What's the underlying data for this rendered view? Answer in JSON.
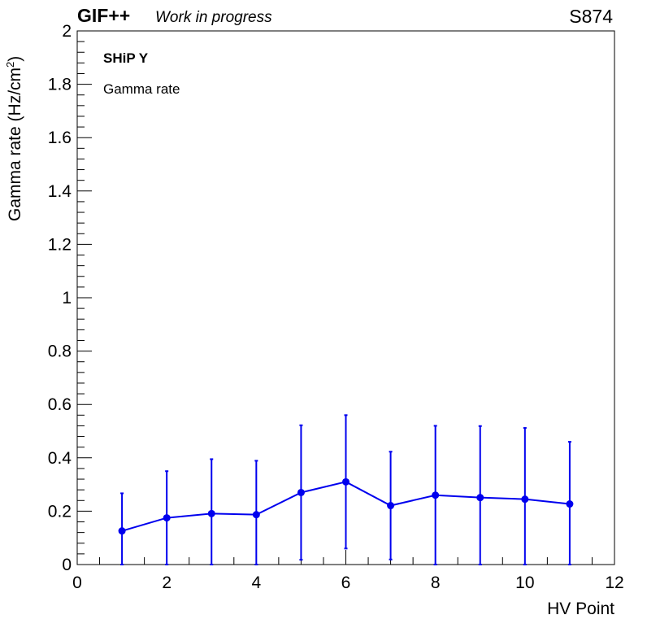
{
  "header": {
    "experiment": "GIF++",
    "status": "Work in progress",
    "run": "S874"
  },
  "chart_data": {
    "type": "line",
    "title": "",
    "xlabel": "HV Point",
    "ylabel_main": "Gamma rate (Hz/cm",
    "ylabel_sup": "2",
    "ylabel_end": ")",
    "xlim": [
      0,
      12
    ],
    "ylim": [
      0,
      2
    ],
    "x_ticks": [
      "0",
      "2",
      "4",
      "6",
      "8",
      "10",
      "12"
    ],
    "y_ticks": [
      "0",
      "0.2",
      "0.4",
      "0.6",
      "0.8",
      "1",
      "1.2",
      "1.4",
      "1.6",
      "1.8",
      "2"
    ],
    "grid": false,
    "legend": {
      "position": "top-left",
      "chamber": "SHiP Y",
      "entry": "Gamma rate"
    },
    "colors": {
      "series": "#0000ee",
      "axis": "#000000"
    },
    "series": [
      {
        "x": [
          1,
          2,
          3,
          4,
          5,
          6,
          7,
          8,
          9,
          10,
          11
        ],
        "y": [
          0.126,
          0.175,
          0.191,
          0.187,
          0.27,
          0.31,
          0.221,
          0.26,
          0.251,
          0.245,
          0.227
        ],
        "y_err": [
          0.141,
          0.175,
          0.204,
          0.202,
          0.252,
          0.25,
          0.202,
          0.26,
          0.268,
          0.267,
          0.233
        ]
      }
    ]
  }
}
